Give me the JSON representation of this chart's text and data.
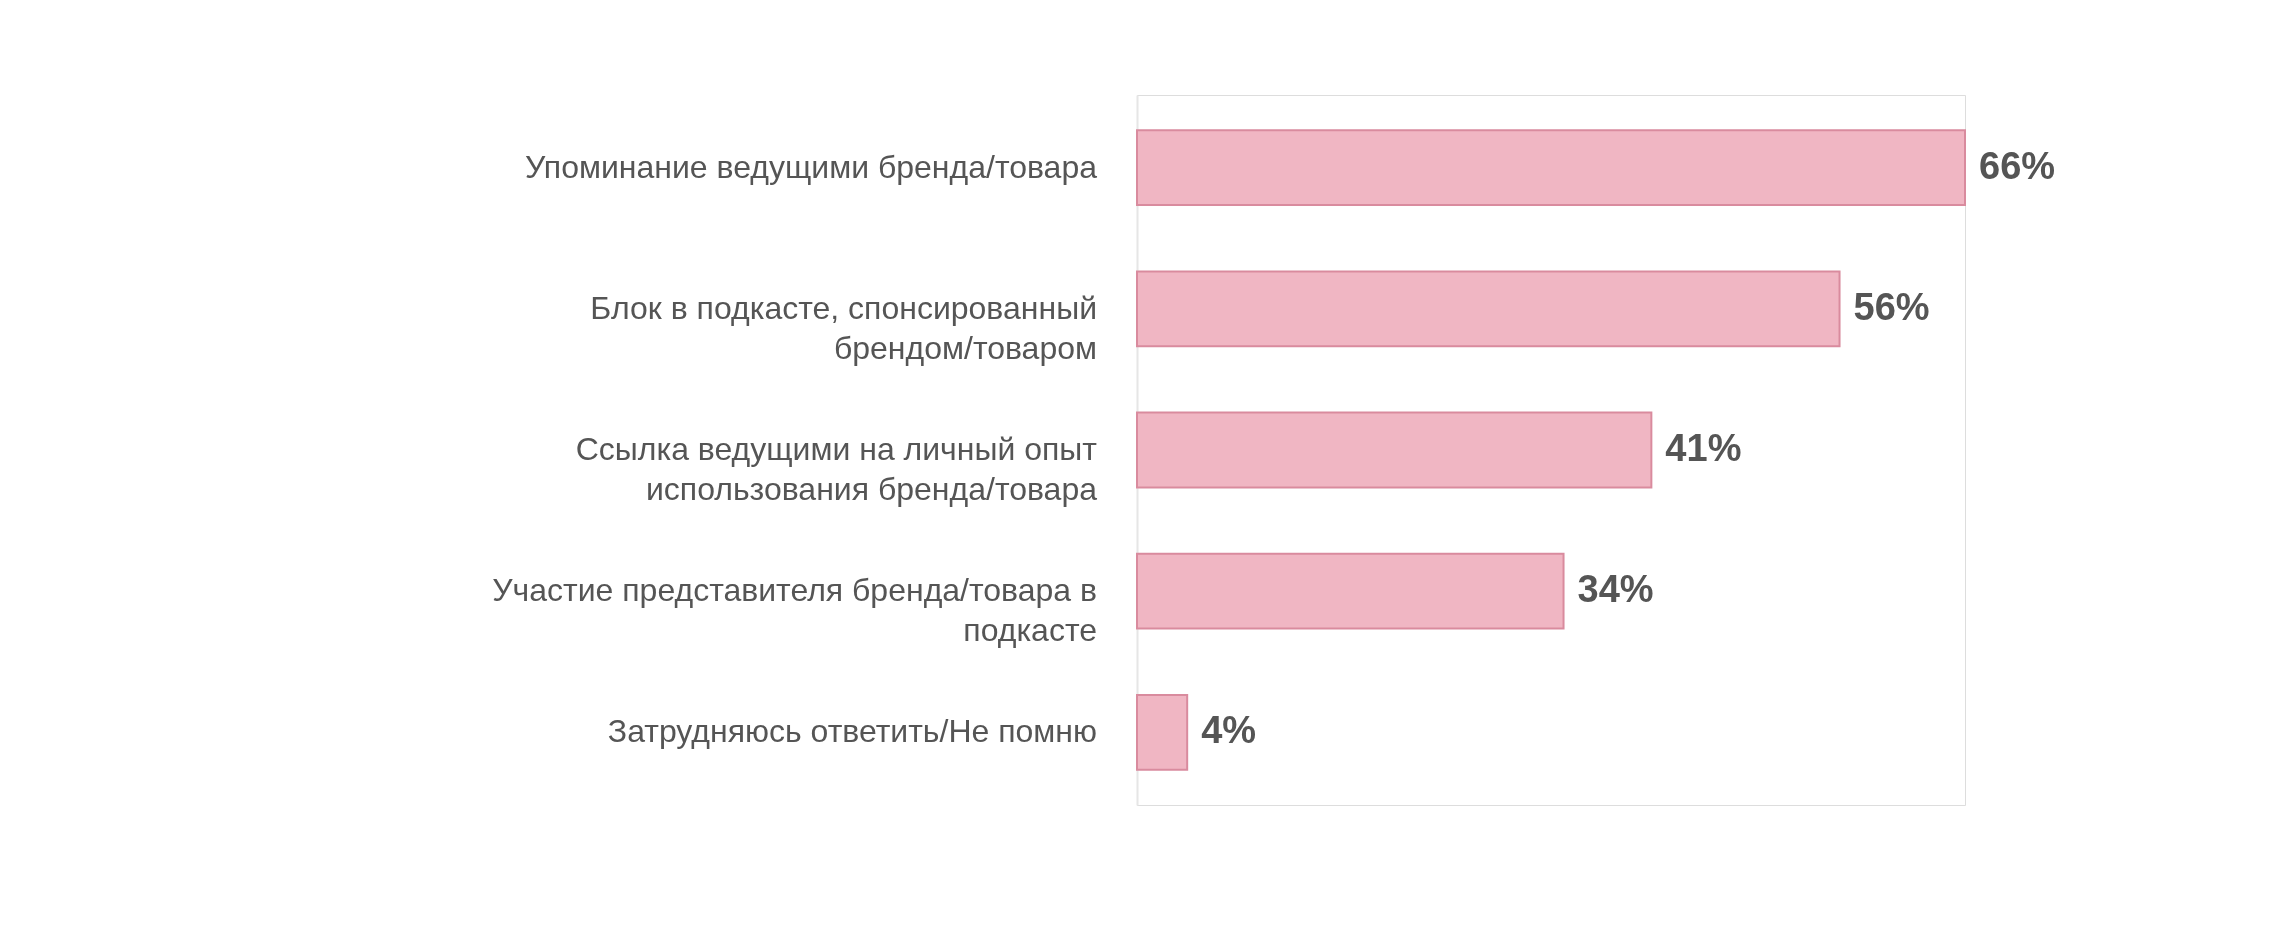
{
  "chart_data": {
    "type": "bar",
    "orientation": "horizontal",
    "categories": [
      "Упоминание ведущими бренда/товара",
      "Блок в подкасте, спонсированный брендом/товаром",
      "Ссылка ведущими на личный опыт использования бренда/товара",
      "Участие представителя бренда/товара в подкасте",
      "Затрудняюсь ответить/Не помню"
    ],
    "values": [
      66,
      56,
      41,
      34,
      4
    ],
    "value_labels": [
      "66%",
      "56%",
      "41%",
      "34%",
      "4%"
    ],
    "color": "#f0b6c3",
    "tick_labels": "y"
  }
}
